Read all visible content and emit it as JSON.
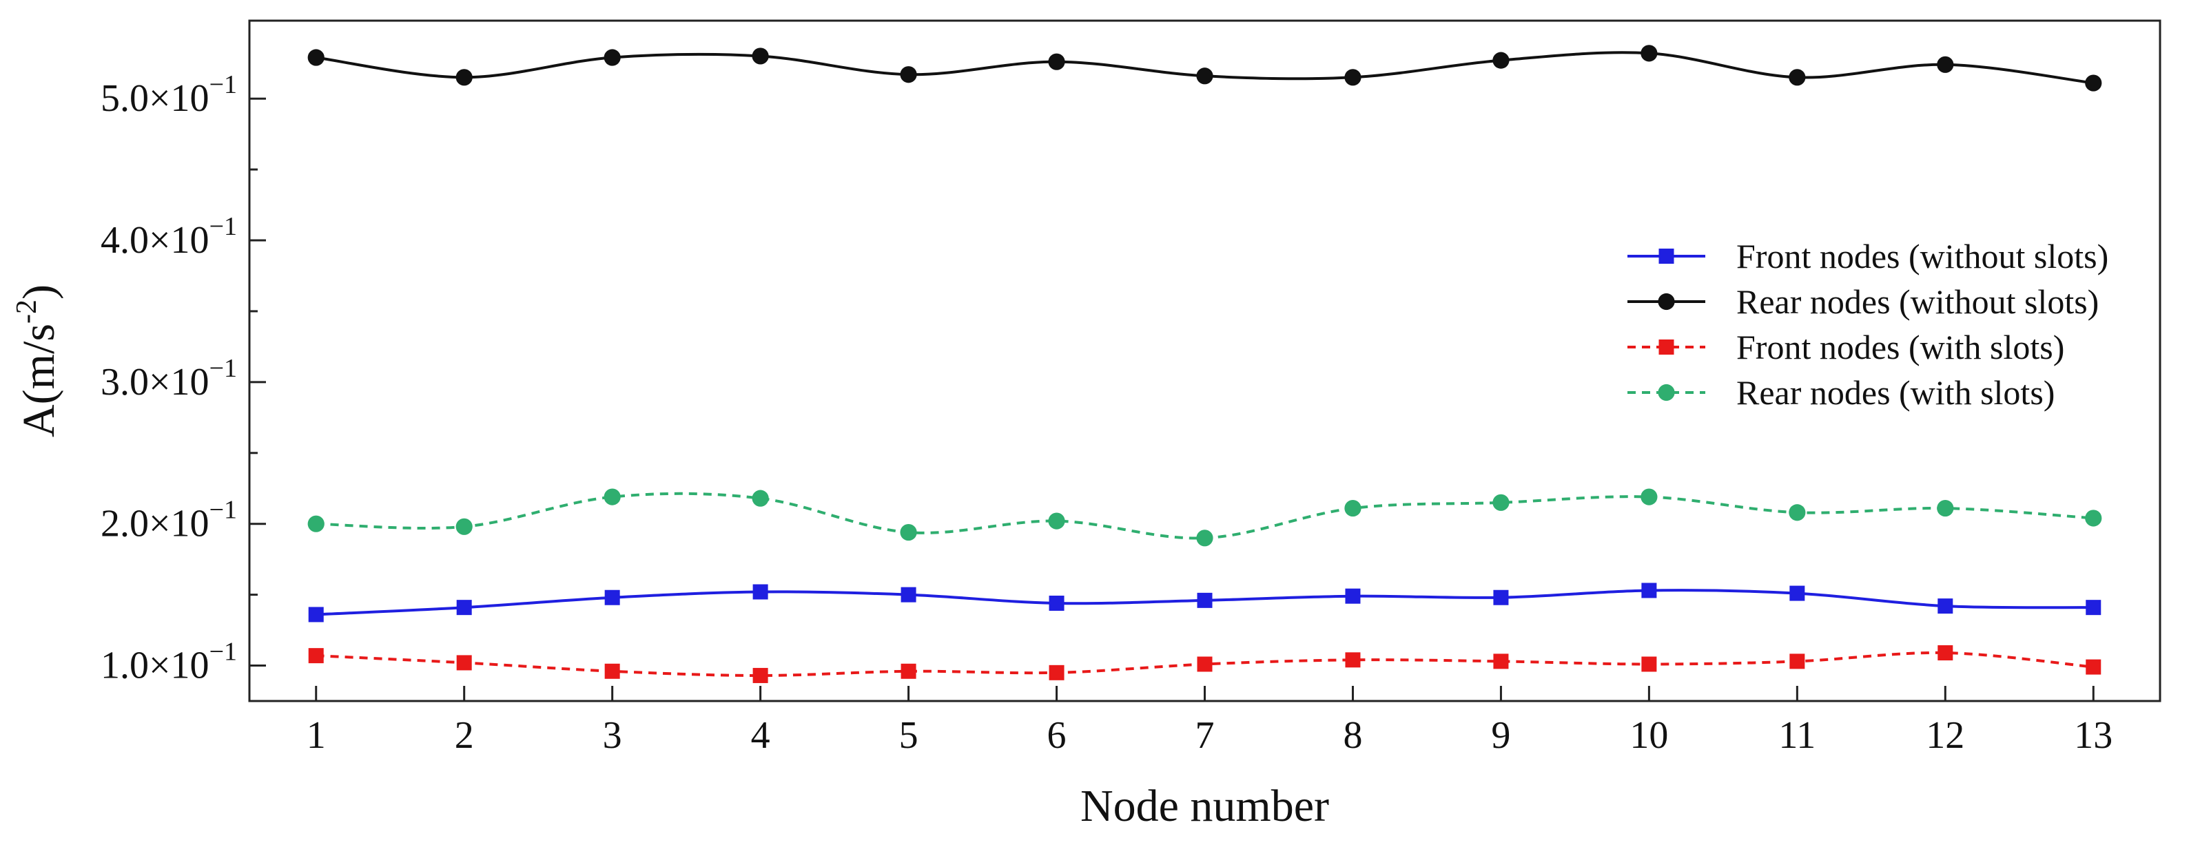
{
  "chart_data": {
    "type": "line",
    "title": "",
    "xlabel": "Node number",
    "ylabel_base": "A(m/s",
    "ylabel_sup": "-2",
    "ylabel_end": ")",
    "x": [
      1,
      2,
      3,
      4,
      5,
      6,
      7,
      8,
      9,
      10,
      11,
      12,
      13
    ],
    "xlim": [
      0.55,
      13.45
    ],
    "ylim": [
      0.075,
      0.555
    ],
    "yticks": [
      {
        "value": 0.1,
        "mantissa": "1.0×10",
        "exp": "−1"
      },
      {
        "value": 0.2,
        "mantissa": "2.0×10",
        "exp": "−1"
      },
      {
        "value": 0.3,
        "mantissa": "3.0×10",
        "exp": "−1"
      },
      {
        "value": 0.4,
        "mantissa": "4.0×10",
        "exp": "−1"
      },
      {
        "value": 0.5,
        "mantissa": "5.0×10",
        "exp": "−1"
      }
    ],
    "grid": false,
    "legend_position": "right",
    "series": [
      {
        "name": "Front nodes (without slots)",
        "color": "#1f1fe0",
        "dash": false,
        "marker": "square",
        "values": [
          0.136,
          0.141,
          0.148,
          0.152,
          0.15,
          0.144,
          0.146,
          0.149,
          0.148,
          0.153,
          0.151,
          0.142,
          0.141
        ]
      },
      {
        "name": "Rear nodes (without slots)",
        "color": "#111111",
        "dash": false,
        "marker": "circle",
        "values": [
          0.529,
          0.515,
          0.529,
          0.53,
          0.517,
          0.526,
          0.516,
          0.515,
          0.527,
          0.532,
          0.515,
          0.524,
          0.511
        ]
      },
      {
        "name": "Front nodes (with slots)",
        "color": "#e81919",
        "dash": true,
        "marker": "square",
        "values": [
          0.107,
          0.102,
          0.096,
          0.093,
          0.096,
          0.095,
          0.101,
          0.104,
          0.103,
          0.101,
          0.103,
          0.109,
          0.099
        ]
      },
      {
        "name": "Rear nodes (with slots)",
        "color": "#2fae6f",
        "dash": true,
        "marker": "circle",
        "values": [
          0.2,
          0.198,
          0.219,
          0.218,
          0.194,
          0.202,
          0.19,
          0.211,
          0.215,
          0.219,
          0.208,
          0.211,
          0.204
        ]
      }
    ]
  }
}
